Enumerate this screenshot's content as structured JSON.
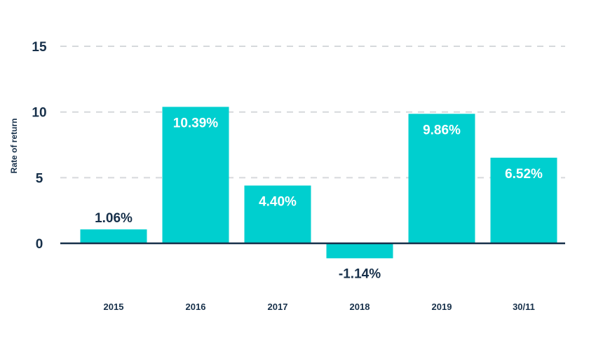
{
  "chart_data": {
    "type": "bar",
    "title": "",
    "xlabel": "",
    "ylabel": "Rate of return",
    "categories": [
      "2015",
      "2016",
      "2017",
      "2018",
      "2019",
      "30/11"
    ],
    "values": [
      1.06,
      10.39,
      4.4,
      -1.14,
      9.86,
      6.52
    ],
    "data_labels": [
      "1.06%",
      "10.39%",
      "4.40%",
      "-1.14%",
      "9.86%",
      "6.52%"
    ],
    "y_ticks": [
      0,
      5,
      10,
      15
    ],
    "y_tick_labels": [
      "0",
      "5",
      "10",
      "15"
    ],
    "ylim": [
      -2,
      15
    ],
    "grid": true,
    "legend": "none",
    "colors": {
      "bar": "#00cfcf",
      "text_dark": "#17304a",
      "text_on_bar": "#ffffff",
      "grid": "#d6d9dc",
      "axis": "#17304a"
    }
  }
}
